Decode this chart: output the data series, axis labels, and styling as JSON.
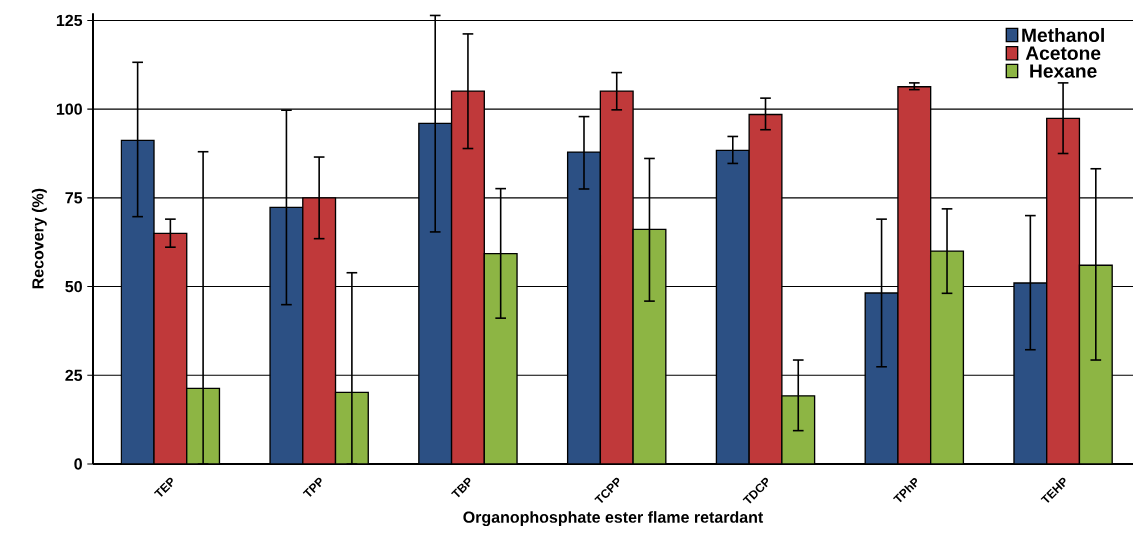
{
  "chart_data": {
    "type": "bar",
    "xlabel": "Organophosphate ester flame retardant",
    "ylabel": "Recovery (%)",
    "categories": [
      "TEP",
      "TPP",
      "TBP",
      "TCPP",
      "TDCP",
      "TPhP",
      "TEHP"
    ],
    "series": [
      {
        "name": "Methanol",
        "color": "#2c5084",
        "values": [
          91.2,
          72.3,
          96.0,
          87.9,
          88.4,
          48.2,
          51.0
        ],
        "errors": [
          [
            69.7,
            113.2
          ],
          [
            44.9,
            99.7
          ],
          [
            65.4,
            126.4
          ],
          [
            77.5,
            97.9
          ],
          [
            84.7,
            92.3
          ],
          [
            27.4,
            69.0
          ],
          [
            32.2,
            70.0
          ]
        ]
      },
      {
        "name": "Acetone",
        "color": "#c0393a",
        "values": [
          65.0,
          75.0,
          105.1,
          105.1,
          98.5,
          106.3,
          97.4
        ],
        "errors": [
          [
            61.1,
            69.0
          ],
          [
            63.5,
            86.5
          ],
          [
            88.9,
            121.2
          ],
          [
            99.8,
            110.3
          ],
          [
            94.2,
            103.1
          ],
          [
            105.5,
            107.4
          ],
          [
            87.5,
            107.4
          ]
        ]
      },
      {
        "name": "Hexane",
        "color": "#8db544",
        "values": [
          21.3,
          20.2,
          59.3,
          66.1,
          19.2,
          60.0,
          56.0
        ],
        "errors": [
          [
            0,
            88.0
          ],
          [
            0,
            53.9
          ],
          [
            41.1,
            77.6
          ],
          [
            45.9,
            86.1
          ],
          [
            9.4,
            29.3
          ],
          [
            48.1,
            71.9
          ],
          [
            29.3,
            83.2
          ]
        ]
      }
    ],
    "ylim": [
      0,
      127
    ],
    "yticks": [
      0,
      25,
      50,
      75,
      100,
      125
    ],
    "grid": "y",
    "legend": "top right"
  }
}
